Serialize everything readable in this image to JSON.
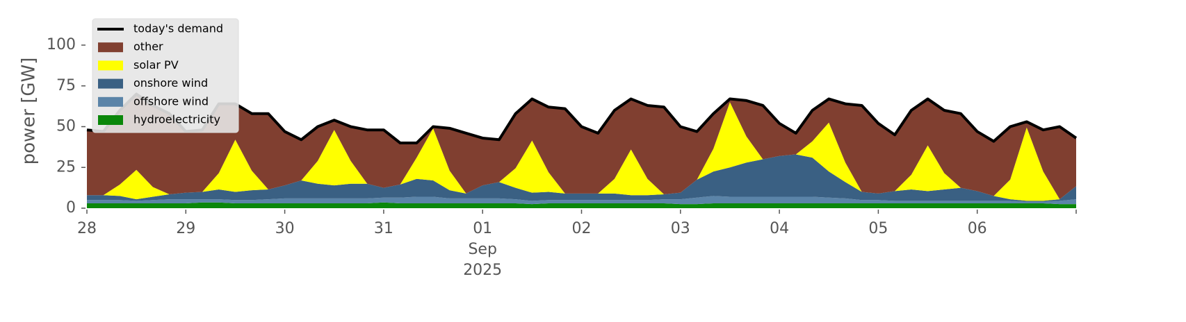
{
  "chart_data": {
    "type": "stacked-area",
    "ylabel": "power [GW]",
    "x": [
      "2025-08-28T00:00",
      "2025-08-28T04:00",
      "2025-08-28T08:00",
      "2025-08-28T12:00",
      "2025-08-28T16:00",
      "2025-08-28T20:00",
      "2025-08-29T00:00",
      "2025-08-29T04:00",
      "2025-08-29T08:00",
      "2025-08-29T12:00",
      "2025-08-29T16:00",
      "2025-08-29T20:00",
      "2025-08-30T00:00",
      "2025-08-30T04:00",
      "2025-08-30T08:00",
      "2025-08-30T12:00",
      "2025-08-30T16:00",
      "2025-08-30T20:00",
      "2025-08-31T00:00",
      "2025-08-31T04:00",
      "2025-08-31T08:00",
      "2025-08-31T12:00",
      "2025-08-31T16:00",
      "2025-08-31T20:00",
      "2025-09-01T00:00",
      "2025-09-01T04:00",
      "2025-09-01T08:00",
      "2025-09-01T12:00",
      "2025-09-01T16:00",
      "2025-09-01T20:00",
      "2025-09-02T00:00",
      "2025-09-02T04:00",
      "2025-09-02T08:00",
      "2025-09-02T12:00",
      "2025-09-02T16:00",
      "2025-09-02T20:00",
      "2025-09-03T00:00",
      "2025-09-03T04:00",
      "2025-09-03T08:00",
      "2025-09-03T12:00",
      "2025-09-03T16:00",
      "2025-09-03T20:00",
      "2025-09-04T00:00",
      "2025-09-04T04:00",
      "2025-09-04T08:00",
      "2025-09-04T12:00",
      "2025-09-04T16:00",
      "2025-09-04T20:00",
      "2025-09-05T00:00",
      "2025-09-05T04:00",
      "2025-09-05T08:00",
      "2025-09-05T12:00",
      "2025-09-05T16:00",
      "2025-09-05T20:00",
      "2025-09-06T00:00",
      "2025-09-06T04:00",
      "2025-09-06T08:00",
      "2025-09-06T12:00",
      "2025-09-06T16:00",
      "2025-09-06T20:00",
      "2025-09-07T00:00"
    ],
    "series": [
      {
        "name": "hydroelectricity",
        "color": "#0a870a",
        "values": [
          3,
          3,
          3,
          3,
          3,
          3,
          3,
          3.5,
          3.5,
          3,
          3,
          3,
          3,
          3,
          3,
          3,
          3,
          3,
          3.5,
          3,
          3,
          3,
          3,
          3,
          3,
          3,
          3,
          2.5,
          3,
          3,
          3,
          3,
          3,
          3,
          3,
          3,
          2.5,
          2.5,
          3,
          3,
          3,
          3,
          3,
          3,
          3,
          3,
          3,
          3,
          3,
          3,
          3,
          3,
          3,
          3,
          3,
          3,
          3,
          3,
          3,
          2.5,
          2.5
        ]
      },
      {
        "name": "offshore wind",
        "color": "#5b84a8",
        "values": [
          2,
          2,
          2,
          1.5,
          2,
          2.5,
          2.5,
          2,
          2,
          2,
          2,
          2.5,
          3,
          3,
          3,
          3,
          3,
          3,
          3,
          3.5,
          4,
          4,
          3,
          3,
          3,
          3,
          2.5,
          2,
          2,
          2,
          2,
          2,
          2,
          2,
          2,
          2.5,
          3,
          4,
          4.5,
          4,
          4,
          4,
          4,
          4,
          4,
          3.5,
          3,
          2,
          2,
          1.5,
          1.5,
          1.5,
          1.5,
          1.5,
          1.5,
          1.5,
          1.5,
          1,
          1,
          2,
          3
        ]
      },
      {
        "name": "onshore wind",
        "color": "#3a6083",
        "values": [
          3,
          3,
          2.5,
          1,
          2,
          3,
          4,
          4.5,
          6,
          5,
          6,
          6,
          8,
          11,
          9,
          8,
          9,
          9,
          6,
          8,
          11,
          10,
          5,
          3,
          8,
          10,
          7,
          5,
          5,
          4,
          4,
          4,
          4,
          3,
          3,
          3,
          4,
          11,
          15,
          18,
          21,
          23,
          25,
          26,
          24,
          16,
          10,
          5,
          4,
          6,
          7,
          6,
          7,
          8,
          6,
          3,
          1,
          0.5,
          0.5,
          1,
          8
        ]
      },
      {
        "name": "solar PV",
        "color": "#ffff00",
        "values": [
          0,
          0,
          7,
          18,
          6,
          0,
          0,
          0,
          10,
          32,
          12,
          0,
          0,
          0,
          14,
          34,
          14,
          0,
          0,
          0,
          13,
          32,
          12,
          0,
          0,
          0,
          12,
          32,
          12,
          0,
          0,
          0,
          9,
          28,
          10,
          0,
          0,
          0,
          14,
          40,
          16,
          0,
          0,
          0,
          10,
          30,
          12,
          0,
          0,
          0,
          9,
          28,
          10,
          0,
          0,
          0,
          12,
          45,
          18,
          0,
          0
        ]
      },
      {
        "name": "other",
        "color": "#803f30",
        "values": [
          40,
          39,
          45.5,
          46.5,
          50,
          49.5,
          37.5,
          38,
          42.5,
          22,
          35,
          46.5,
          33,
          25,
          21,
          6,
          21,
          33,
          35.5,
          25.5,
          9,
          1,
          26,
          37,
          29,
          26,
          33.5,
          25.5,
          40,
          52,
          41,
          37,
          42,
          31,
          45,
          53.5,
          40.5,
          29.5,
          21.5,
          2,
          22,
          33,
          20,
          13,
          19,
          14.5,
          36,
          53,
          43,
          34.5,
          39.5,
          28.5,
          38.5,
          45.5,
          36.5,
          33.5,
          32.5,
          3.5,
          25.5,
          44.5,
          29.5
        ]
      }
    ],
    "line": {
      "name": "today's demand",
      "color": "#000000",
      "values": [
        48,
        47,
        60,
        70,
        63,
        58,
        47,
        48,
        64,
        64,
        58,
        58,
        47,
        42,
        50,
        54,
        50,
        48,
        48,
        40,
        40,
        50,
        49,
        46,
        43,
        42,
        58,
        67,
        62,
        61,
        50,
        46,
        60,
        67,
        63,
        62,
        50,
        47,
        58,
        67,
        66,
        63,
        52,
        46,
        60,
        67,
        64,
        63,
        52,
        45,
        60,
        67,
        60,
        58,
        47,
        41,
        50,
        53,
        48,
        50,
        43
      ]
    },
    "xlim": [
      "2025-08-28T00:00",
      "2025-09-07T00:00"
    ],
    "xticks": [
      {
        "value": "2025-08-28T00:00",
        "label": "28"
      },
      {
        "value": "2025-08-29T00:00",
        "label": "29"
      },
      {
        "value": "2025-08-30T00:00",
        "label": "30"
      },
      {
        "value": "2025-08-31T00:00",
        "label": "31"
      },
      {
        "value": "2025-09-01T00:00",
        "label": "01\nSep\n2025"
      },
      {
        "value": "2025-09-02T00:00",
        "label": "02"
      },
      {
        "value": "2025-09-03T00:00",
        "label": "03"
      },
      {
        "value": "2025-09-04T00:00",
        "label": "04"
      },
      {
        "value": "2025-09-05T00:00",
        "label": "05"
      },
      {
        "value": "2025-09-06T00:00",
        "label": "06"
      }
    ],
    "ylim": [
      0,
      120
    ],
    "yticks": [
      0,
      25,
      50,
      75,
      100
    ],
    "legend": "upper left"
  }
}
